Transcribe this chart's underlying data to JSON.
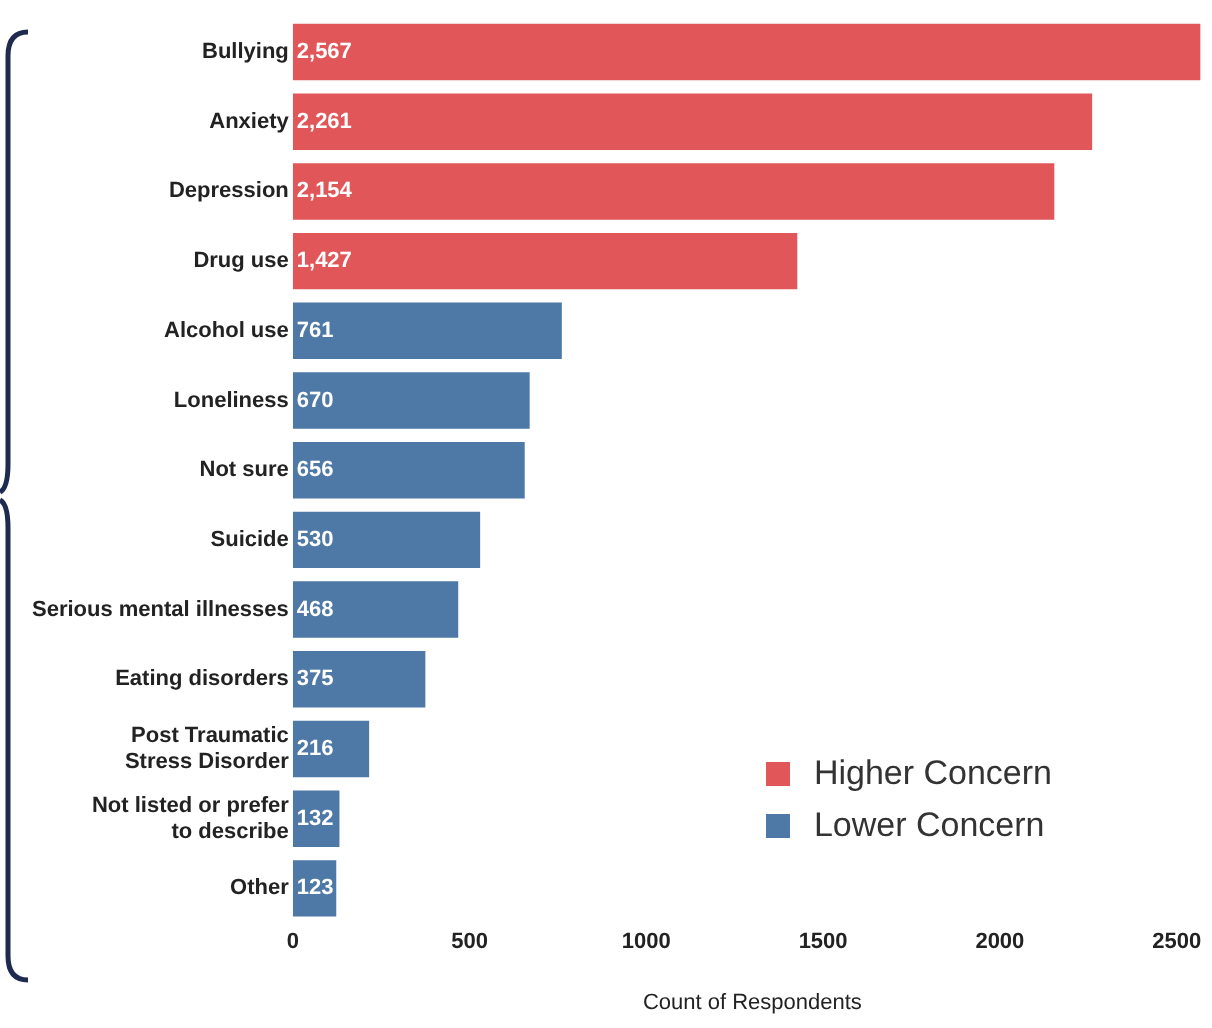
{
  "chart_data": {
    "type": "bar",
    "orientation": "horizontal",
    "stacked": true,
    "xlabel": "Count of Respondents",
    "categories": [
      "Bullying",
      "Anxiety",
      "Depression",
      "Drug use",
      "Alcohol use",
      "Loneliness",
      "Not sure",
      "Suicide",
      "Serious mental illnesses",
      "Eating disorders",
      "Post Traumatic Stress Disorder",
      "Not listed or prefer to describe",
      "Other"
    ],
    "series": [
      {
        "name": "Higher Concern",
        "color": "#e15759",
        "values": [
          2567,
          2261,
          2154,
          1427,
          null,
          null,
          null,
          null,
          null,
          null,
          null,
          null,
          null
        ],
        "value_labels": [
          "2,567",
          "2,261",
          "2,154",
          "1,427",
          null,
          null,
          null,
          null,
          null,
          null,
          null,
          null,
          null
        ]
      },
      {
        "name": "Lower Concern",
        "color": "#4e79a7",
        "values": [
          null,
          null,
          null,
          null,
          761,
          670,
          656,
          530,
          468,
          375,
          216,
          132,
          123
        ],
        "value_labels": [
          null,
          null,
          null,
          null,
          "761",
          "670",
          "656",
          "530",
          "468",
          "375",
          "216",
          "132",
          "123"
        ]
      }
    ],
    "xlim": [
      0,
      2600
    ],
    "xticks": [
      0,
      500,
      1000,
      1500,
      2000,
      2500
    ],
    "grid": false,
    "legend": "bottom right"
  }
}
